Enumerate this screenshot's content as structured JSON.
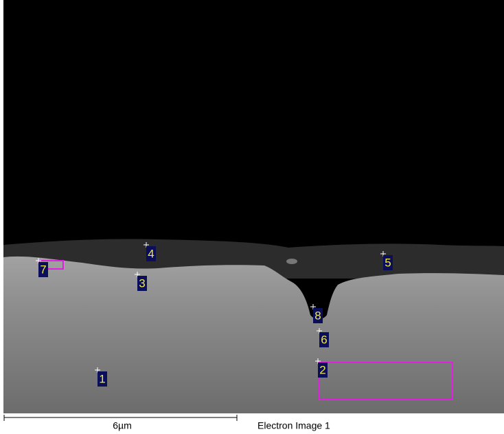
{
  "image": {
    "markers": [
      {
        "label": "1"
      },
      {
        "label": "2"
      },
      {
        "label": "3"
      },
      {
        "label": "4"
      },
      {
        "label": "5"
      },
      {
        "label": "6"
      },
      {
        "label": "7"
      },
      {
        "label": "8"
      }
    ],
    "scale_bar": {
      "label": "6µm"
    },
    "caption": "Electron Image 1"
  }
}
